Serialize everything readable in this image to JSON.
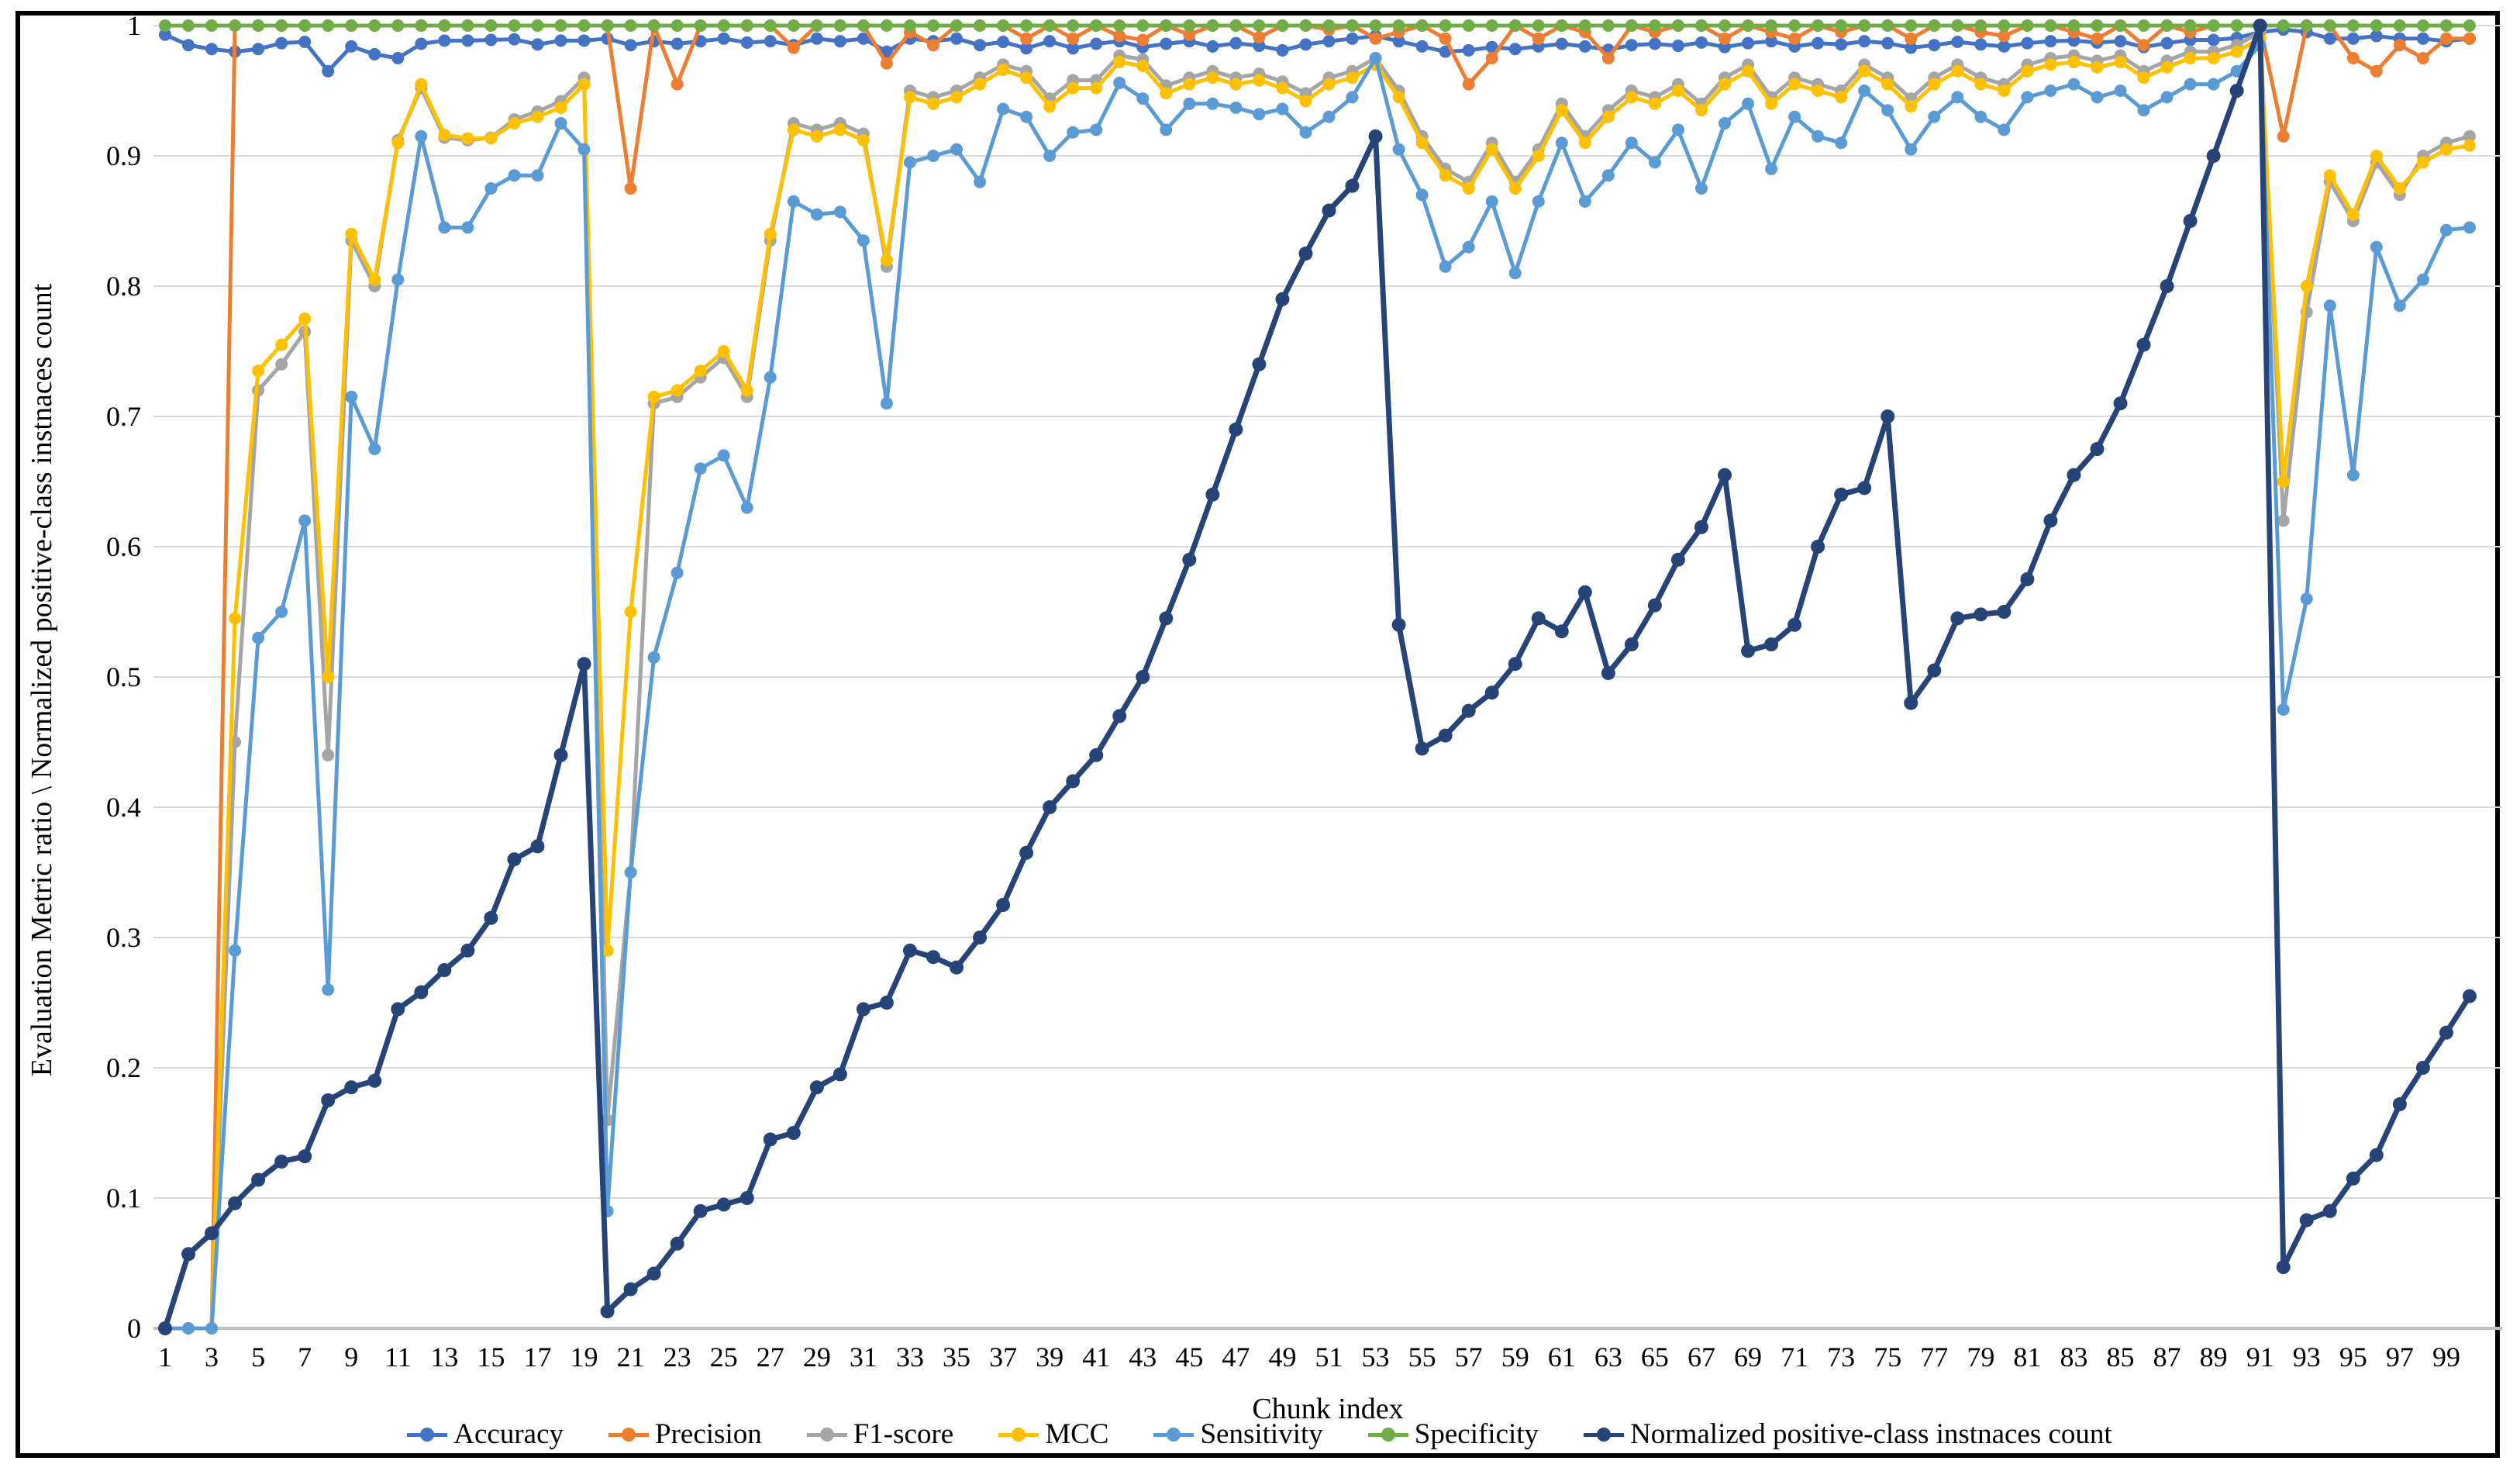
{
  "y_axis_title": "Evaluation Metric ratio \\ Normalized positive-class instnaces count",
  "x_axis_title": "Chunk index",
  "chart_data": {
    "type": "line",
    "title": "",
    "xlabel": "Chunk index",
    "ylabel": "Evaluation Metric ratio \\ Normalized positive-class instnaces count",
    "x_range": [
      1,
      100
    ],
    "ylim": [
      0,
      1
    ],
    "y_ticks": [
      1,
      0.9,
      0.8,
      0.7,
      0.6,
      0.5,
      0.4,
      0.3,
      0.2,
      0.1,
      0
    ],
    "y_tick_labels": [
      "1",
      "0.9",
      "0.8",
      "0.7",
      "0.6",
      "0.5",
      "0.4",
      "0.3",
      "0.2",
      "0.1",
      "0"
    ],
    "x_tick_labels": [
      "1",
      "3",
      "5",
      "7",
      "9",
      "11",
      "13",
      "15",
      "17",
      "19",
      "21",
      "23",
      "25",
      "27",
      "29",
      "31",
      "33",
      "35",
      "37",
      "39",
      "41",
      "43",
      "45",
      "47",
      "49",
      "51",
      "53",
      "55",
      "57",
      "59",
      "61",
      "63",
      "65",
      "67",
      "69",
      "71",
      "73",
      "75",
      "77",
      "79",
      "81",
      "83",
      "85",
      "87",
      "89",
      "91",
      "93",
      "95",
      "97",
      "99"
    ],
    "grid": "horizontal",
    "legend_position": "bottom",
    "series": [
      {
        "name": "Accuracy",
        "color": "#4472C4",
        "values": [
          0.993,
          0.985,
          0.982,
          0.98,
          0.982,
          0.9865,
          0.9875,
          0.965,
          0.984,
          0.978,
          0.975,
          0.986,
          0.9885,
          0.9885,
          0.989,
          0.9895,
          0.9855,
          0.9885,
          0.9885,
          0.99,
          0.985,
          0.988,
          0.986,
          0.988,
          0.99,
          0.987,
          0.988,
          0.985,
          0.99,
          0.988,
          0.99,
          0.98,
          0.99,
          0.988,
          0.99,
          0.985,
          0.9875,
          0.9825,
          0.988,
          0.9825,
          0.986,
          0.988,
          0.9835,
          0.986,
          0.988,
          0.984,
          0.9865,
          0.9845,
          0.981,
          0.9855,
          0.988,
          0.99,
          0.992,
          0.988,
          0.984,
          0.98,
          0.981,
          0.9835,
          0.982,
          0.984,
          0.986,
          0.984,
          0.9815,
          0.985,
          0.986,
          0.9845,
          0.987,
          0.9835,
          0.9865,
          0.988,
          0.984,
          0.9865,
          0.9855,
          0.988,
          0.9865,
          0.983,
          0.985,
          0.9875,
          0.9855,
          0.984,
          0.9865,
          0.988,
          0.9885,
          0.987,
          0.988,
          0.9835,
          0.9865,
          0.989,
          0.989,
          0.9905,
          0.995,
          0.997,
          0.995,
          0.99,
          0.99,
          0.992,
          0.99,
          0.99,
          0.988,
          0.99
        ]
      },
      {
        "name": "Precision",
        "color": "#ED7D31",
        "values": [
          0,
          0,
          0,
          1,
          1,
          1,
          1,
          1,
          1,
          1,
          1,
          1,
          1,
          1,
          1,
          1,
          1,
          1,
          1,
          1,
          0.875,
          1,
          0.955,
          1,
          1,
          1,
          1,
          0.983,
          1,
          1,
          1,
          0.971,
          0.995,
          0.985,
          1,
          1,
          1,
          0.99,
          1,
          0.99,
          1,
          0.992,
          0.989,
          1,
          0.993,
          1,
          1,
          0.991,
          1,
          1,
          0.997,
          1,
          0.99,
          0.995,
          1,
          0.99,
          0.955,
          0.975,
          1,
          0.99,
          1,
          0.995,
          0.975,
          1,
          0.995,
          1,
          1,
          0.99,
          1,
          0.995,
          0.99,
          1,
          0.995,
          1,
          1,
          0.99,
          1,
          1,
          0.995,
          0.992,
          1,
          1,
          0.995,
          0.99,
          1,
          0.985,
          1,
          0.995,
          1,
          1,
          1,
          0.915,
          1,
          1,
          0.975,
          0.965,
          0.985,
          0.975,
          0.99,
          0.99
        ]
      },
      {
        "name": "F1-score",
        "color": "#A5A5A5",
        "values": [
          0,
          0,
          0,
          0.45,
          0.72,
          0.74,
          0.765,
          0.44,
          0.835,
          0.8,
          0.912,
          0.952,
          0.914,
          0.912,
          0.914,
          0.928,
          0.934,
          0.942,
          0.96,
          0.16,
          0.35,
          0.71,
          0.715,
          0.73,
          0.745,
          0.715,
          0.835,
          0.925,
          0.92,
          0.925,
          0.917,
          0.815,
          0.95,
          0.945,
          0.95,
          0.96,
          0.97,
          0.965,
          0.944,
          0.958,
          0.958,
          0.977,
          0.974,
          0.954,
          0.96,
          0.965,
          0.96,
          0.963,
          0.957,
          0.948,
          0.96,
          0.965,
          0.975,
          0.95,
          0.915,
          0.89,
          0.88,
          0.91,
          0.88,
          0.905,
          0.94,
          0.915,
          0.935,
          0.95,
          0.945,
          0.955,
          0.94,
          0.96,
          0.97,
          0.945,
          0.96,
          0.955,
          0.95,
          0.97,
          0.96,
          0.944,
          0.96,
          0.97,
          0.96,
          0.955,
          0.97,
          0.975,
          0.977,
          0.973,
          0.977,
          0.965,
          0.973,
          0.98,
          0.98,
          0.985,
          0.995,
          0.62,
          0.78,
          0.88,
          0.85,
          0.895,
          0.87,
          0.9,
          0.91,
          0.915
        ]
      },
      {
        "name": "MCC",
        "color": "#FFC000",
        "values": [
          0,
          0,
          0,
          0.545,
          0.735,
          0.755,
          0.775,
          0.5,
          0.84,
          0.805,
          0.91,
          0.955,
          0.916,
          0.9135,
          0.9135,
          0.925,
          0.93,
          0.937,
          0.955,
          0.29,
          0.55,
          0.715,
          0.72,
          0.735,
          0.75,
          0.72,
          0.84,
          0.92,
          0.915,
          0.92,
          0.912,
          0.82,
          0.945,
          0.94,
          0.945,
          0.955,
          0.966,
          0.96,
          0.938,
          0.952,
          0.952,
          0.972,
          0.969,
          0.948,
          0.955,
          0.96,
          0.955,
          0.958,
          0.952,
          0.942,
          0.955,
          0.96,
          0.97,
          0.945,
          0.91,
          0.885,
          0.875,
          0.905,
          0.875,
          0.9,
          0.935,
          0.91,
          0.93,
          0.945,
          0.94,
          0.95,
          0.935,
          0.955,
          0.965,
          0.94,
          0.955,
          0.95,
          0.945,
          0.965,
          0.955,
          0.938,
          0.955,
          0.965,
          0.955,
          0.95,
          0.965,
          0.97,
          0.972,
          0.968,
          0.972,
          0.96,
          0.968,
          0.975,
          0.975,
          0.98,
          0.99,
          0.65,
          0.8,
          0.885,
          0.855,
          0.9,
          0.875,
          0.895,
          0.905,
          0.908
        ]
      },
      {
        "name": "Sensitivity",
        "color": "#5B9BD5",
        "values": [
          0,
          0,
          0,
          0.29,
          0.53,
          0.55,
          0.62,
          0.26,
          0.715,
          0.675,
          0.805,
          0.915,
          0.845,
          0.845,
          0.875,
          0.885,
          0.885,
          0.925,
          0.905,
          0.09,
          0.35,
          0.515,
          0.58,
          0.66,
          0.67,
          0.63,
          0.73,
          0.865,
          0.855,
          0.857,
          0.835,
          0.71,
          0.895,
          0.9,
          0.905,
          0.88,
          0.936,
          0.93,
          0.9,
          0.918,
          0.92,
          0.956,
          0.944,
          0.92,
          0.94,
          0.94,
          0.937,
          0.932,
          0.936,
          0.918,
          0.93,
          0.945,
          0.975,
          0.905,
          0.87,
          0.815,
          0.83,
          0.865,
          0.81,
          0.865,
          0.91,
          0.865,
          0.885,
          0.91,
          0.895,
          0.92,
          0.875,
          0.925,
          0.94,
          0.89,
          0.93,
          0.915,
          0.91,
          0.95,
          0.935,
          0.905,
          0.93,
          0.945,
          0.93,
          0.92,
          0.945,
          0.95,
          0.955,
          0.945,
          0.95,
          0.935,
          0.945,
          0.955,
          0.955,
          0.965,
          0.985,
          0.475,
          0.56,
          0.785,
          0.655,
          0.83,
          0.785,
          0.805,
          0.843,
          0.845
        ]
      },
      {
        "name": "Specificity",
        "color": "#70AD47",
        "values": [
          1,
          1,
          1,
          1,
          1,
          1,
          1,
          1,
          1,
          1,
          1,
          1,
          1,
          1,
          1,
          1,
          1,
          1,
          1,
          1,
          1,
          1,
          1,
          1,
          1,
          1,
          1,
          1,
          1,
          1,
          1,
          1,
          1,
          1,
          1,
          1,
          1,
          1,
          1,
          1,
          1,
          1,
          1,
          1,
          1,
          1,
          1,
          1,
          1,
          1,
          1,
          1,
          1,
          1,
          1,
          1,
          1,
          1,
          1,
          1,
          1,
          1,
          1,
          1,
          1,
          1,
          1,
          1,
          1,
          1,
          1,
          1,
          1,
          1,
          1,
          1,
          1,
          1,
          1,
          1,
          1,
          1,
          1,
          1,
          1,
          1,
          1,
          1,
          1,
          1,
          1,
          1,
          1,
          1,
          1,
          1,
          1,
          1,
          1,
          1
        ]
      },
      {
        "name": "Normalized positive-class instnaces count",
        "color": "#264478",
        "values": [
          0,
          0.057,
          0.073,
          0.096,
          0.114,
          0.128,
          0.132,
          0.175,
          0.185,
          0.19,
          0.245,
          0.258,
          0.275,
          0.29,
          0.315,
          0.36,
          0.37,
          0.44,
          0.51,
          0.013,
          0.03,
          0.042,
          0.065,
          0.09,
          0.095,
          0.1,
          0.145,
          0.15,
          0.185,
          0.195,
          0.245,
          0.25,
          0.29,
          0.285,
          0.277,
          0.3,
          0.325,
          0.365,
          0.4,
          0.42,
          0.44,
          0.47,
          0.5,
          0.545,
          0.59,
          0.64,
          0.69,
          0.74,
          0.79,
          0.825,
          0.858,
          0.877,
          0.915,
          0.54,
          0.445,
          0.455,
          0.474,
          0.488,
          0.51,
          0.545,
          0.535,
          0.565,
          0.503,
          0.525,
          0.555,
          0.59,
          0.615,
          0.655,
          0.52,
          0.525,
          0.54,
          0.6,
          0.64,
          0.645,
          0.7,
          0.48,
          0.505,
          0.545,
          0.548,
          0.55,
          0.575,
          0.62,
          0.655,
          0.675,
          0.71,
          0.755,
          0.8,
          0.85,
          0.9,
          0.95,
          1.0,
          0.047,
          0.083,
          0.09,
          0.115,
          0.133,
          0.172,
          0.2,
          0.227,
          0.255
        ]
      }
    ]
  },
  "legend": [
    {
      "label": "Accuracy",
      "color": "#4472C4"
    },
    {
      "label": "Precision",
      "color": "#ED7D31"
    },
    {
      "label": "F1-score",
      "color": "#A5A5A5"
    },
    {
      "label": "MCC",
      "color": "#FFC000"
    },
    {
      "label": "Sensitivity",
      "color": "#5B9BD5"
    },
    {
      "label": "Specificity",
      "color": "#70AD47"
    },
    {
      "label": "Normalized positive-class instnaces count",
      "color": "#264478"
    }
  ],
  "style": {
    "gridline_color": "#D9D9D9",
    "zero_axis_color": "#BFBFBF",
    "frame_color": "#000000"
  }
}
